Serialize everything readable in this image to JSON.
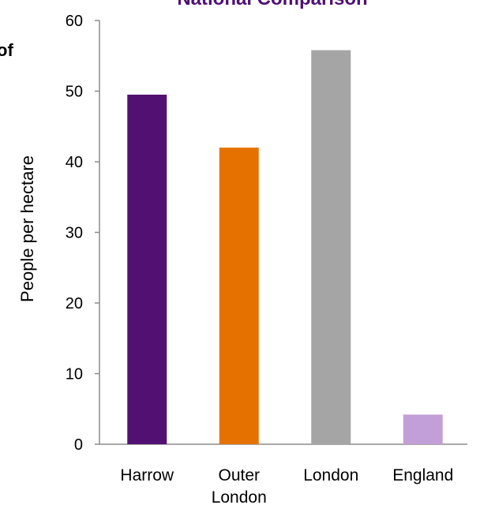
{
  "chart_data": {
    "type": "bar",
    "title": "National Comparison",
    "title_color": "#4f1174",
    "ylabel": "People per hectare",
    "xlabel": "",
    "categories": [
      [
        "Harrow"
      ],
      [
        "Outer",
        "London"
      ],
      [
        "London"
      ],
      [
        "England"
      ]
    ],
    "values": [
      49.5,
      42,
      55.8,
      4.2
    ],
    "colors": [
      "#521172",
      "#e57200",
      "#a5a5a5",
      "#c39fd8"
    ],
    "ylim": [
      0,
      60
    ],
    "yticks": [
      0,
      10,
      20,
      30,
      40,
      50,
      60
    ],
    "grid": false,
    "legend": "none"
  },
  "fragment_left": "of"
}
